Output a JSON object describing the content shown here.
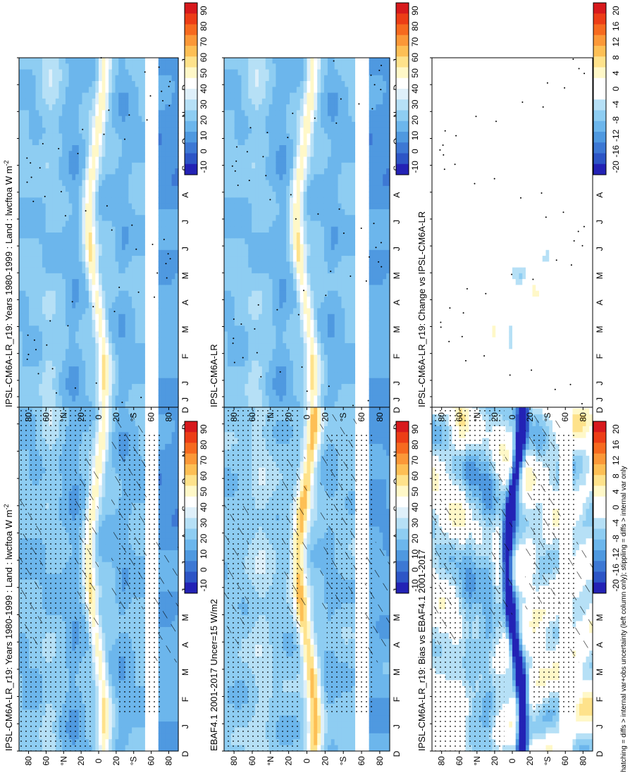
{
  "footer_note": "hatching = diffs > internal var+obs uncertainty (left column only); stippling = diffs > internal var only",
  "colorbars": {
    "absolute": {
      "labels": [
        "90",
        "80",
        "70",
        "60",
        "50",
        "40",
        "30",
        "20",
        "10",
        "0",
        "-10"
      ],
      "colors": [
        "#d7191c",
        "#ec3d16",
        "#f66a1f",
        "#fb9838",
        "#fdbf55",
        "#fee28b",
        "#fff8c8",
        "#ffffff",
        "#dff0fa",
        "#b6e0f6",
        "#8ecdf2",
        "#6cb6ec",
        "#4f99e0",
        "#3d78d4",
        "#2d55c6",
        "#2322b5"
      ]
    },
    "diff": {
      "labels": [
        "20",
        "16",
        "12",
        "8",
        "4",
        "0",
        "-4",
        "-8",
        "-12",
        "-16",
        "-20"
      ],
      "colors": [
        "#d7191c",
        "#ec3d16",
        "#f66a1f",
        "#fb9838",
        "#fdbf55",
        "#fee28b",
        "#fff8c8",
        "#ffffff",
        "#ffffff",
        "#b6e0f6",
        "#8ecdf2",
        "#6cb6ec",
        "#4f99e0",
        "#3d78d4",
        "#2d55c6",
        "#2322b5"
      ]
    }
  },
  "panels": [
    {
      "id": "a",
      "title": "IPSL-CM6A-LR_r19: Years 1980-1999 : Land : lwcftoa W m",
      "title_sup": "-2",
      "bar": "absolute",
      "field": "model",
      "hatch": true,
      "stipple": "heavy"
    },
    {
      "id": "b",
      "title": "EBAF4.1 2001-2017 Uncer=15 W/m2",
      "title_sup": "",
      "bar": "absolute",
      "field": "obs",
      "hatch": true,
      "stipple": "heavy"
    },
    {
      "id": "c",
      "title": "IPSL-CM6A-LR_r19: Bias vs EBAF4.1 2001-2017",
      "title_sup": "",
      "bar": "diff",
      "field": "bias",
      "hatch": true,
      "stipple": "heavy"
    },
    {
      "id": "d",
      "title": "IPSL-CM6A-LR_r19: Years 1980-1999 : Land : lwcftoa W m",
      "title_sup": "-2",
      "bar": "absolute",
      "field": "model",
      "hatch": false,
      "stipple": "light"
    },
    {
      "id": "e",
      "title": "IPSL-CM6A-LR",
      "title_sup": "",
      "bar": "absolute",
      "field": "model",
      "hatch": false,
      "stipple": "light"
    },
    {
      "id": "f",
      "title": "IPSL-CM6A-LR_r19: Change vs IPSL-CM6A-LR",
      "title_sup": "",
      "bar": "diff",
      "field": "change",
      "hatch": false,
      "stipple": "sparse"
    }
  ],
  "chart_data": {
    "type": "heatmap",
    "x_ticks": [
      "D",
      "J",
      "F",
      "M",
      "A",
      "M",
      "J",
      "J",
      "A",
      "S",
      "O",
      "N",
      "D",
      "J"
    ],
    "y_ticks": [
      "80",
      "60",
      "°N",
      "20",
      "0",
      "20",
      "°S",
      "60",
      "80"
    ],
    "ylim": [
      -90,
      90
    ],
    "panels": [
      {
        "title": "IPSL-CM6A-LR_r19: Years 1980-1999 : Land : lwcftoa W m-2",
        "units": "W m-2",
        "colorbar": [
          90,
          80,
          70,
          60,
          50,
          40,
          30,
          20,
          10,
          0,
          -10
        ]
      },
      {
        "title": "EBAF4.1 2001-2017 Uncer=15 W/m2",
        "colorbar": [
          90,
          80,
          70,
          60,
          50,
          40,
          30,
          20,
          10,
          0,
          -10
        ]
      },
      {
        "title": "IPSL-CM6A-LR_r19: Bias vs EBAF4.1 2001-2017",
        "colorbar": [
          20,
          16,
          12,
          8,
          4,
          0,
          -4,
          -8,
          -12,
          -16,
          -20
        ]
      },
      {
        "title": "IPSL-CM6A-LR_r19: Years 1980-1999 : Land : lwcftoa W m-2",
        "colorbar": [
          90,
          80,
          70,
          60,
          50,
          40,
          30,
          20,
          10,
          0,
          -10
        ]
      },
      {
        "title": "IPSL-CM6A-LR",
        "colorbar": [
          90,
          80,
          70,
          60,
          50,
          40,
          30,
          20,
          10,
          0,
          -10
        ]
      },
      {
        "title": "IPSL-CM6A-LR_r19: Change vs IPSL-CM6A-LR",
        "colorbar": [
          20,
          16,
          12,
          8,
          4,
          0,
          -4,
          -8,
          -12,
          -16,
          -20
        ]
      }
    ]
  }
}
